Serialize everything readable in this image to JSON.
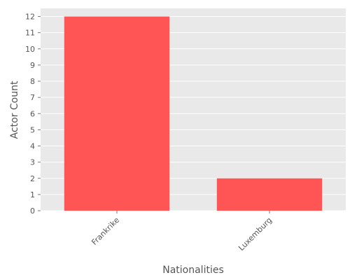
{
  "colors": {
    "plot_background": "#e9e9e9",
    "grid": "#ffffff",
    "bar": "#ff5555",
    "text": "#555555"
  },
  "chart_data": {
    "type": "bar",
    "categories": [
      "Frankrike",
      "Luxemburg"
    ],
    "values": [
      12,
      2
    ],
    "xlabel": "Nationalities",
    "ylabel": "Actor Count",
    "ylim": [
      0,
      12.5
    ],
    "yticks": [
      0,
      1,
      2,
      3,
      4,
      5,
      6,
      7,
      8,
      9,
      10,
      11,
      12
    ],
    "grid": true,
    "legend": "none"
  }
}
